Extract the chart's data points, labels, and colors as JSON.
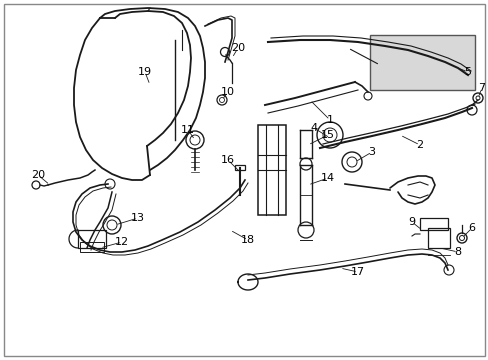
{
  "background_color": "#ffffff",
  "fig_width": 4.89,
  "fig_height": 3.6,
  "dpi": 100,
  "label_fontsize": 8,
  "label_color": "#000000",
  "line_color": "#1a1a1a",
  "line_width": 1.0
}
